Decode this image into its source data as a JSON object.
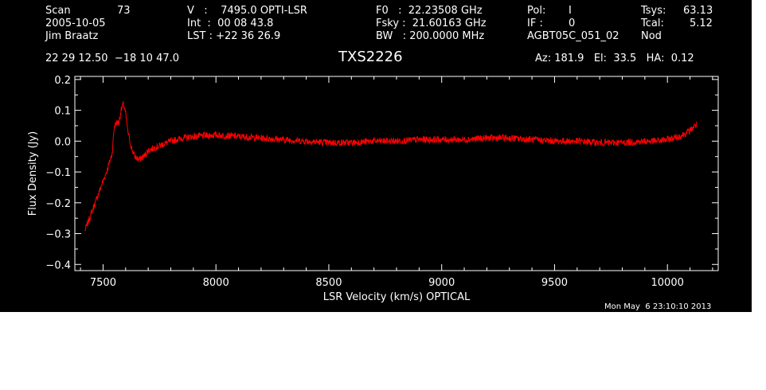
{
  "header": {
    "scan_label": "Scan",
    "scan_value": "73",
    "date": "2005-10-05",
    "observer": "Jim Braatz",
    "v_line": "V   :    7495.0 OPTI-LSR",
    "int_line": "Int  :  00 08 43.8",
    "lst_line": "LST : +22 36 26.9",
    "f0_line": "F0   :  22.23508 GHz",
    "fsky_line": "Fsky :  21.60163 GHz",
    "bw_line": "BW   : 200.0000 MHz",
    "pol_label": "Pol:",
    "pol_value": "I",
    "if_label": "IF :",
    "if_value": "0",
    "project": "AGBT05C_051_02",
    "tsys_label": "Tsys:",
    "tsys_value": "63.13",
    "tcal_label": "Tcal:",
    "tcal_value": "5.12",
    "mode": "Nod",
    "coords": "22 29 12.50  −18 10 47.0",
    "source": "TXS2226",
    "az_el_ha": "Az: 181.9   El:  33.5   HA:  0.12",
    "timestamp": "Mon May  6 23:10:10 2013"
  },
  "chart_data": {
    "type": "line",
    "xlabel": "LSR Velocity (km/s) OPTICAL",
    "ylabel": "Flux Density (Jy)",
    "xlim": [
      7375,
      10225
    ],
    "ylim": [
      -0.42,
      0.21
    ],
    "x_ticks": [
      {
        "value": 7500,
        "label": "7500"
      },
      {
        "value": 8000,
        "label": "8000"
      },
      {
        "value": 8500,
        "label": "8500"
      },
      {
        "value": 9000,
        "label": "9000"
      },
      {
        "value": 9500,
        "label": "9500"
      },
      {
        "value": 10000,
        "label": "10000"
      }
    ],
    "y_ticks": [
      {
        "value": 0.2,
        "label": "0.2"
      },
      {
        "value": 0.1,
        "label": "0.1"
      },
      {
        "value": 0.0,
        "label": "0.0"
      },
      {
        "value": -0.1,
        "label": "−0.1"
      },
      {
        "value": -0.2,
        "label": "−0.2"
      },
      {
        "value": -0.3,
        "label": "−0.3"
      },
      {
        "value": -0.4,
        "label": "−0.4"
      }
    ],
    "series": [
      {
        "color": "#ff0000",
        "x": [
          7420,
          7440,
          7460,
          7480,
          7500,
          7520,
          7540,
          7550,
          7560,
          7570,
          7580,
          7590,
          7600,
          7610,
          7625,
          7640,
          7660,
          7680,
          7700,
          7750,
          7800,
          7850,
          7900,
          8000,
          8100,
          8200,
          8300,
          8400,
          8500,
          8600,
          8700,
          8800,
          8900,
          9000,
          9100,
          9200,
          9300,
          9400,
          9500,
          9600,
          9700,
          9800,
          9900,
          9950,
          10000,
          10050,
          10080,
          10100,
          10130
        ],
        "y": [
          -0.29,
          -0.25,
          -0.21,
          -0.17,
          -0.13,
          -0.09,
          -0.04,
          0.05,
          0.06,
          0.06,
          0.1,
          0.12,
          0.09,
          0.03,
          -0.02,
          -0.05,
          -0.06,
          -0.05,
          -0.03,
          -0.015,
          0.0,
          0.01,
          0.015,
          0.02,
          0.015,
          0.01,
          0.005,
          0.0,
          -0.005,
          -0.005,
          0.0,
          0.0,
          0.005,
          0.005,
          0.005,
          0.01,
          0.01,
          0.005,
          0.0,
          0.0,
          -0.005,
          -0.005,
          0.0,
          0.0,
          0.005,
          0.015,
          0.025,
          0.035,
          0.055
        ]
      }
    ]
  }
}
